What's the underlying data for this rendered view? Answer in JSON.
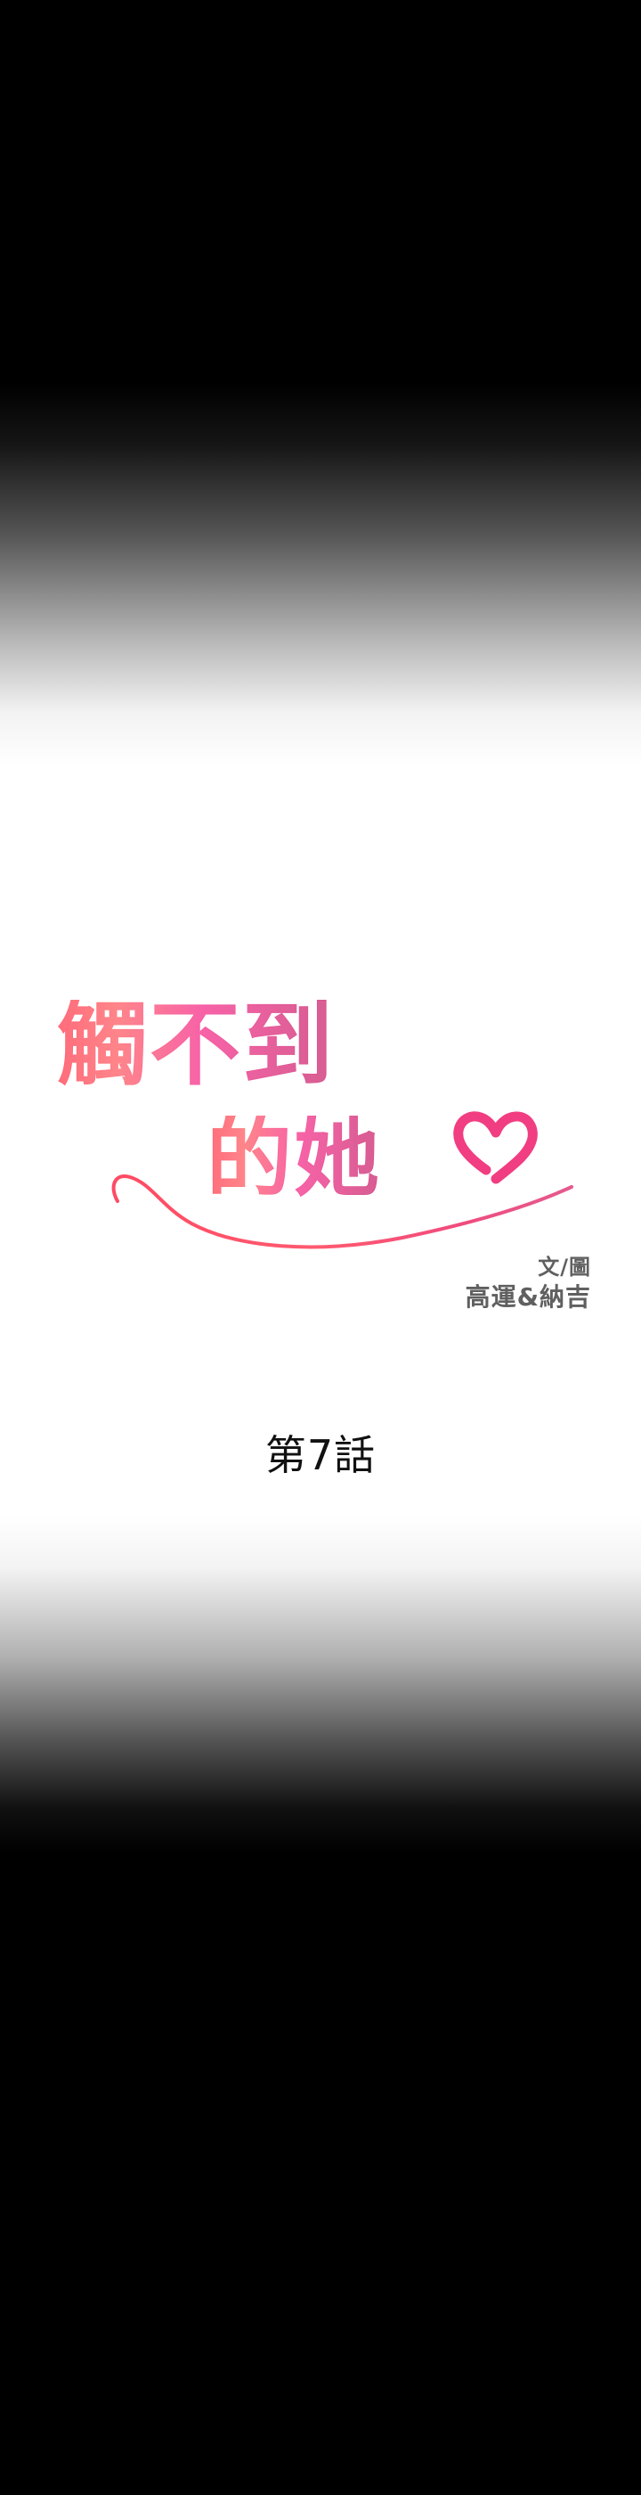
{
  "title": {
    "line1": "觸不到",
    "line2": "的她"
  },
  "credits": {
    "label": "文/圖",
    "authors": "高運&納吉"
  },
  "chapter": "第7話"
}
